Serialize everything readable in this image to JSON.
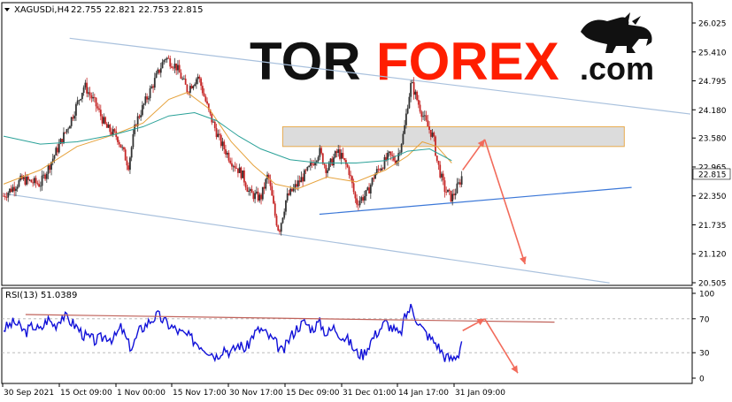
{
  "chart_data": [
    {
      "type": "candlestick",
      "symbol_label": "XAGUSDi,H4",
      "ohlc_label": "22.755 22.821 22.753 22.815",
      "ylim": [
        20.505,
        26.025
      ],
      "y_ticks": [
        "26.025",
        "25.410",
        "24.795",
        "24.180",
        "23.580",
        "22.965",
        "22.350",
        "21.735",
        "21.120",
        "20.505"
      ],
      "current_price": "22.815",
      "x_tick_labels": [
        "30 Sep 2021",
        "15 Oct 09:00",
        "1 Nov 00:00",
        "15 Nov 17:00",
        "30 Nov 17:00",
        "15 Dec 09:00",
        "31 Dec 01:00",
        "14 Jan 17:00",
        "31 Jan 09:00"
      ],
      "close_path": [
        [
          0,
          22.35
        ],
        [
          5,
          22.7
        ],
        [
          10,
          22.6
        ],
        [
          15,
          23.4
        ],
        [
          18,
          23.9
        ],
        [
          22,
          24.7
        ],
        [
          25,
          24.3
        ],
        [
          28,
          23.8
        ],
        [
          31,
          23.6
        ],
        [
          34,
          23.0
        ],
        [
          36,
          23.9
        ],
        [
          40,
          24.6
        ],
        [
          44,
          25.3
        ],
        [
          47,
          25.1
        ],
        [
          50,
          24.6
        ],
        [
          53,
          24.9
        ],
        [
          56,
          24.1
        ],
        [
          59,
          23.5
        ],
        [
          62,
          23.1
        ],
        [
          65,
          22.8
        ],
        [
          67,
          22.4
        ],
        [
          70,
          22.3
        ],
        [
          72,
          22.8
        ],
        [
          74,
          21.9
        ],
        [
          75,
          21.6
        ],
        [
          77,
          22.3
        ],
        [
          80,
          22.6
        ],
        [
          83,
          22.9
        ],
        [
          86,
          23.3
        ],
        [
          88,
          22.9
        ],
        [
          91,
          23.3
        ],
        [
          94,
          22.9
        ],
        [
          96,
          22.2
        ],
        [
          99,
          22.4
        ],
        [
          101,
          22.8
        ],
        [
          103,
          23.0
        ],
        [
          105,
          23.2
        ],
        [
          107,
          23.1
        ],
        [
          109,
          23.7
        ],
        [
          110,
          24.3
        ],
        [
          111,
          24.75
        ],
        [
          113,
          24.3
        ],
        [
          115,
          23.9
        ],
        [
          117,
          23.6
        ],
        [
          118,
          23.1
        ],
        [
          120,
          22.5
        ],
        [
          122,
          22.3
        ],
        [
          124,
          22.6
        ],
        [
          125,
          22.815
        ]
      ],
      "moving_averages": [
        {
          "name": "MA fast",
          "color": "#e6a23c",
          "points": [
            [
              0,
              22.6
            ],
            [
              10,
              22.9
            ],
            [
              20,
              23.4
            ],
            [
              30,
              23.65
            ],
            [
              38,
              23.9
            ],
            [
              45,
              24.4
            ],
            [
              50,
              24.55
            ],
            [
              56,
              24.2
            ],
            [
              62,
              23.5
            ],
            [
              68,
              23.0
            ],
            [
              74,
              22.6
            ],
            [
              80,
              22.5
            ],
            [
              88,
              22.75
            ],
            [
              96,
              22.65
            ],
            [
              104,
              22.9
            ],
            [
              110,
              23.2
            ],
            [
              114,
              23.5
            ],
            [
              118,
              23.4
            ],
            [
              122,
              23.05
            ]
          ]
        },
        {
          "name": "MA slow",
          "color": "#2aa198",
          "points": [
            [
              0,
              23.62
            ],
            [
              10,
              23.45
            ],
            [
              20,
              23.5
            ],
            [
              30,
              23.65
            ],
            [
              38,
              23.82
            ],
            [
              45,
              24.05
            ],
            [
              52,
              24.12
            ],
            [
              58,
              23.95
            ],
            [
              64,
              23.62
            ],
            [
              70,
              23.35
            ],
            [
              78,
              23.12
            ],
            [
              86,
              23.05
            ],
            [
              96,
              23.05
            ],
            [
              104,
              23.1
            ],
            [
              110,
              23.3
            ],
            [
              116,
              23.35
            ],
            [
              122,
              23.1
            ]
          ]
        }
      ],
      "channel_lines": [
        {
          "color": "#a9c1dd",
          "from": [
            18,
            25.7
          ],
          "to": [
            187,
            24.09
          ]
        },
        {
          "color": "#a9c1dd",
          "from": [
            0,
            22.4
          ],
          "to": [
            165,
            20.5
          ]
        },
        {
          "color": "#3c78d8",
          "from": [
            86,
            21.96
          ],
          "to": [
            171,
            22.53
          ]
        }
      ],
      "zone": {
        "from_x": 76,
        "to_x": 169,
        "y_top": 23.82,
        "y_bottom": 23.4,
        "fill": "#d9d9d9",
        "stroke": "#e6a23c"
      },
      "arrows": [
        {
          "color": "#f26b5b",
          "from": [
            125,
            22.9
          ],
          "to": [
            131,
            23.55
          ]
        },
        {
          "color": "#f26b5b",
          "from": [
            131,
            23.55
          ],
          "to": [
            142,
            20.9
          ]
        }
      ],
      "up_color": "#333333",
      "down_color": "#c62828"
    },
    {
      "type": "line",
      "label": "RSI(13) 51.0389",
      "ylim": [
        0,
        100
      ],
      "y_ticks": [
        "100",
        "70",
        "30",
        "0"
      ],
      "levels": [
        70,
        30
      ],
      "points": [
        [
          0,
          58
        ],
        [
          3,
          66
        ],
        [
          6,
          54
        ],
        [
          8,
          62
        ],
        [
          10,
          56
        ],
        [
          12,
          70
        ],
        [
          14,
          62
        ],
        [
          16,
          74
        ],
        [
          18,
          68
        ],
        [
          20,
          60
        ],
        [
          22,
          50
        ],
        [
          25,
          44
        ],
        [
          28,
          50
        ],
        [
          30,
          46
        ],
        [
          32,
          60
        ],
        [
          34,
          40
        ],
        [
          35,
          36
        ],
        [
          37,
          56
        ],
        [
          40,
          68
        ],
        [
          42,
          74
        ],
        [
          44,
          66
        ],
        [
          46,
          60
        ],
        [
          48,
          54
        ],
        [
          50,
          50
        ],
        [
          52,
          44
        ],
        [
          54,
          38
        ],
        [
          56,
          32
        ],
        [
          58,
          26
        ],
        [
          60,
          36
        ],
        [
          62,
          30
        ],
        [
          64,
          40
        ],
        [
          66,
          34
        ],
        [
          68,
          52
        ],
        [
          70,
          58
        ],
        [
          72,
          50
        ],
        [
          74,
          42
        ],
        [
          76,
          30
        ],
        [
          78,
          48
        ],
        [
          80,
          60
        ],
        [
          82,
          66
        ],
        [
          84,
          58
        ],
        [
          86,
          66
        ],
        [
          88,
          52
        ],
        [
          90,
          60
        ],
        [
          92,
          50
        ],
        [
          94,
          44
        ],
        [
          96,
          30
        ],
        [
          98,
          28
        ],
        [
          100,
          44
        ],
        [
          102,
          56
        ],
        [
          104,
          66
        ],
        [
          106,
          58
        ],
        [
          108,
          50
        ],
        [
          109,
          68
        ],
        [
          110,
          78
        ],
        [
          111,
          84
        ],
        [
          112,
          74
        ],
        [
          114,
          58
        ],
        [
          116,
          48
        ],
        [
          118,
          40
        ],
        [
          120,
          26
        ],
        [
          122,
          22
        ],
        [
          124,
          30
        ],
        [
          125,
          51
        ]
      ],
      "trend_line": {
        "color": "#c0625a",
        "from": [
          6,
          75
        ],
        "to": [
          150,
          66
        ]
      },
      "arrows": [
        {
          "color": "#f26b5b",
          "from": [
            125,
            56
          ],
          "to": [
            131,
            70
          ]
        },
        {
          "color": "#f26b5b",
          "from": [
            131,
            70
          ],
          "to": [
            140,
            6
          ]
        }
      ],
      "line_color": "#1010d8"
    }
  ],
  "logo": {
    "text_dark": "TOR",
    "text_red": "FOREX",
    "text_suffix": ".com",
    "icon": "bull-icon"
  }
}
